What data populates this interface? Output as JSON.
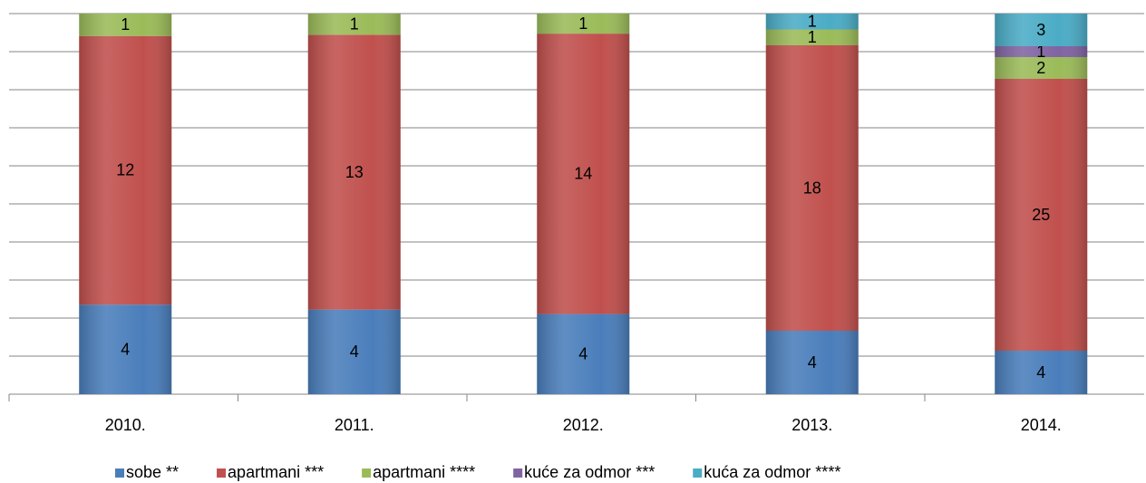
{
  "chart_data": {
    "type": "bar",
    "stacking": "percent",
    "categories": [
      "2010.",
      "2011.",
      "2012.",
      "2013.",
      "2014."
    ],
    "series": [
      {
        "name": "sobe **",
        "color": "#4a7ebb",
        "values": [
          4,
          4,
          4,
          4,
          4
        ]
      },
      {
        "name": "apartmani ***",
        "color": "#c0504d",
        "values": [
          12,
          13,
          14,
          18,
          25
        ]
      },
      {
        "name": "apartmani ****",
        "color": "#9bbb59",
        "values": [
          1,
          1,
          1,
          1,
          2
        ]
      },
      {
        "name": "kuće za odmor ***",
        "color": "#8064a2",
        "values": [
          0,
          0,
          0,
          0,
          1
        ]
      },
      {
        "name": "kuća za odmor ****",
        "color": "#4bacc6",
        "values": [
          0,
          0,
          0,
          1,
          3
        ]
      }
    ],
    "ylim": [
      0,
      100
    ],
    "yticks": [
      0,
      10,
      20,
      30,
      40,
      50,
      60,
      70,
      80,
      90,
      100
    ],
    "grid": true,
    "legend": "bottom"
  }
}
